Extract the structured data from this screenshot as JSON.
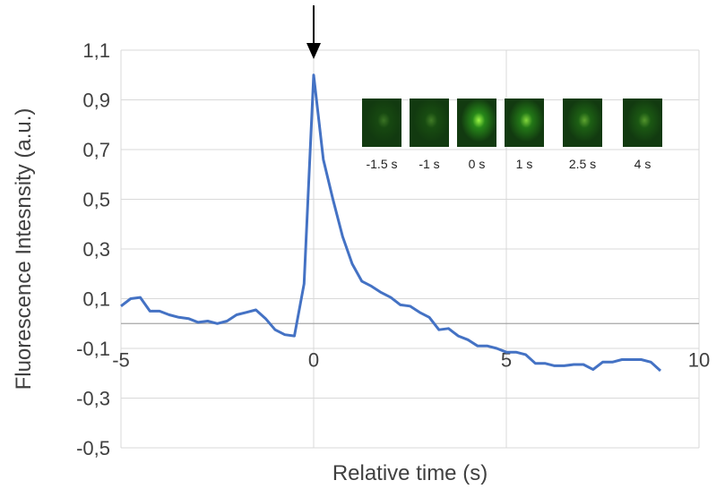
{
  "chart_data": {
    "type": "line",
    "title": "",
    "xlabel": "Relative time (s)",
    "ylabel": "Fluorescence Intesnsity (a.u.)",
    "xlim": [
      -5,
      10
    ],
    "ylim": [
      -0.5,
      1.1
    ],
    "x_ticks": [
      -5,
      0,
      5,
      10
    ],
    "x_tick_labels": [
      "-5",
      "0",
      "5",
      "10"
    ],
    "y_ticks": [
      1.1,
      0.9,
      0.7,
      0.5,
      0.3,
      0.1,
      -0.1,
      -0.3,
      -0.5
    ],
    "y_tick_labels": [
      "1,1",
      "0,9",
      "0,7",
      "0,5",
      "0,3",
      "0,1",
      "-0,1",
      "-0,3",
      "-0,5"
    ],
    "grid": true,
    "line_color": "#4472C4",
    "annotation": "arrow pointing down at peak, x = 0",
    "series": [
      {
        "x": [
          -5,
          -4.75,
          -4.5,
          -4.25,
          -4,
          -3.75,
          -3.5,
          -3.25,
          -3,
          -2.75,
          -2.5,
          -2.25,
          -2,
          -1.75,
          -1.5,
          -1.25,
          -1,
          -0.75,
          -0.5,
          -0.25,
          0,
          0.25,
          0.5,
          0.75,
          1,
          1.25,
          1.5,
          1.75,
          2,
          2.25,
          2.5,
          2.75,
          3,
          3.25,
          3.5,
          3.75,
          4,
          4.25,
          4.5,
          4.75,
          5,
          5.25,
          5.5,
          5.75,
          6,
          6.25,
          6.5,
          6.75,
          7,
          7.25,
          7.5,
          7.75,
          8,
          8.25,
          8.5,
          8.75,
          9
        ],
        "y": [
          0.07,
          0.1,
          0.105,
          0.05,
          0.05,
          0.035,
          0.025,
          0.02,
          0.005,
          0.01,
          0.0,
          0.01,
          0.035,
          0.045,
          0.055,
          0.02,
          -0.025,
          -0.045,
          -0.05,
          0.16,
          1.0,
          0.66,
          0.5,
          0.35,
          0.24,
          0.17,
          0.15,
          0.125,
          0.105,
          0.075,
          0.07,
          0.045,
          0.025,
          -0.025,
          -0.02,
          -0.05,
          -0.065,
          -0.09,
          -0.09,
          -0.1,
          -0.115,
          -0.115,
          -0.125,
          -0.16,
          -0.16,
          -0.17,
          -0.17,
          -0.165,
          -0.165,
          -0.185,
          -0.155,
          -0.155,
          -0.145,
          -0.145,
          -0.145,
          -0.155,
          -0.19
        ]
      }
    ],
    "inset_images": [
      {
        "label": "-1.5 s",
        "brightness": 0.15
      },
      {
        "label": "-1 s",
        "brightness": 0.2
      },
      {
        "label": "0 s",
        "brightness": 0.95
      },
      {
        "label": "1 s",
        "brightness": 0.75
      },
      {
        "label": "2.5 s",
        "brightness": 0.45
      },
      {
        "label": "4 s",
        "brightness": 0.35
      }
    ]
  }
}
